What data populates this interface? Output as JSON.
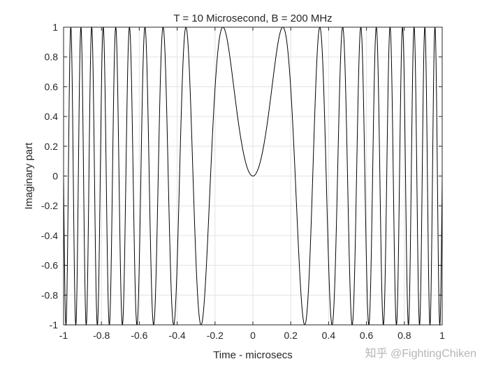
{
  "chart_data": {
    "type": "line",
    "title": "T = 10 Microsecond, B = 200 MHz",
    "xlabel": "Time - microsecs",
    "ylabel": "Imaginary part",
    "xlim": [
      -1,
      1
    ],
    "ylim": [
      -1,
      1
    ],
    "xticks": [
      "-1",
      "-0.8",
      "-0.6",
      "-0.4",
      "-0.2",
      "0",
      "0.2",
      "0.4",
      "0.6",
      "0.8",
      "1"
    ],
    "yticks": [
      "-1",
      "-0.8",
      "-0.6",
      "-0.4",
      "-0.2",
      "0",
      "0.2",
      "0.4",
      "0.6",
      "0.8",
      "1"
    ],
    "grid": true,
    "series": [
      {
        "function": "sin(pi*(B/T)*t^2)",
        "T_us": 10,
        "B_MHz": 200,
        "color": "#000000"
      }
    ]
  },
  "watermark": "知乎 @FightingChiken"
}
